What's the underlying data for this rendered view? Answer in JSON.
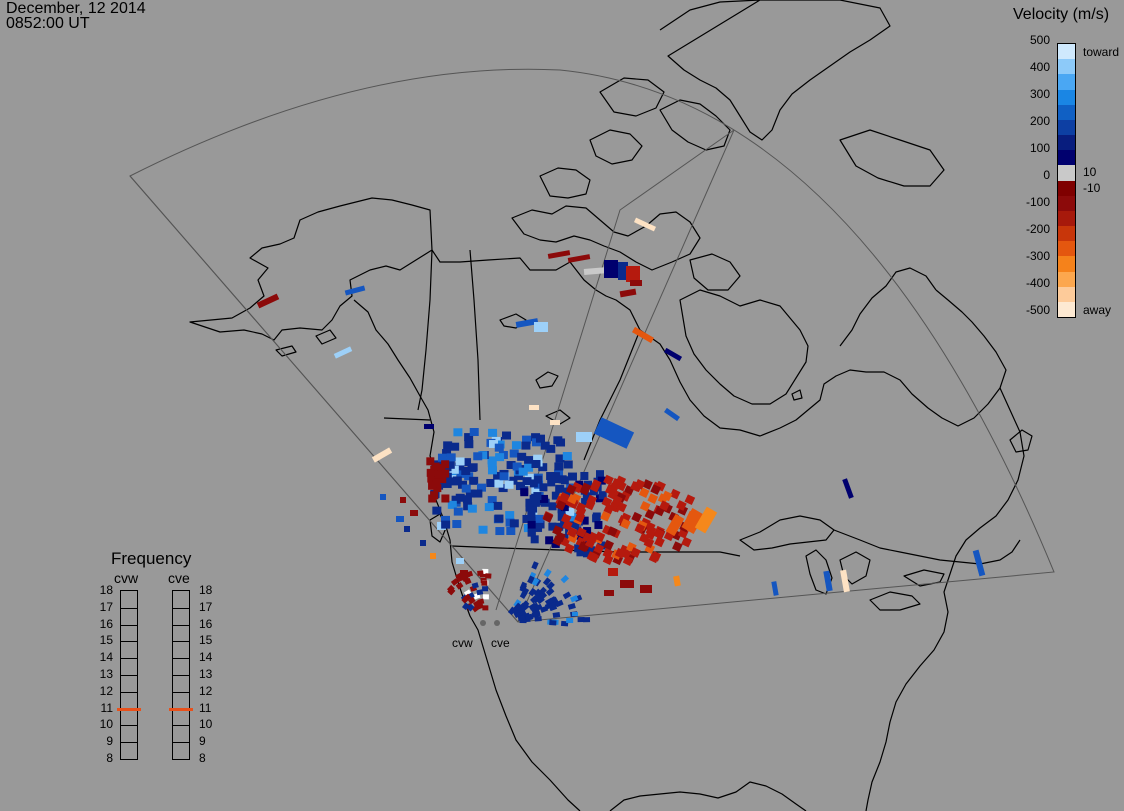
{
  "header": {
    "date": "December, 12 2014",
    "time": "0852:00 UT"
  },
  "colorbar": {
    "title": "Velocity (m/s)",
    "ticks": [
      "500",
      "400",
      "300",
      "200",
      "100",
      "0",
      "-100",
      "-200",
      "-300",
      "-400",
      "-500"
    ],
    "small_labels": [
      "10",
      "-10"
    ],
    "toward_label": "toward",
    "away_label": "away",
    "colors": [
      "#fde9d2",
      "#fdcb9a",
      "#fca74e",
      "#f5821b",
      "#e4570f",
      "#c8360a",
      "#a7190b",
      "#8c0a0a",
      "#7f0000",
      "#c9c9c9",
      "#00006e",
      "#081d7e",
      "#0d3fa3",
      "#1060c4",
      "#1a86e4",
      "#4aa7f3",
      "#8dcaf9",
      "#cfe9fd"
    ]
  },
  "radars": {
    "labels": [
      "cvw",
      "cve"
    ]
  },
  "frequency": {
    "title": "Frequency",
    "columns": [
      "cvw",
      "cve"
    ],
    "levels": [
      "18",
      "17",
      "16",
      "15",
      "14",
      "13",
      "12",
      "11",
      "10",
      "9",
      "8"
    ],
    "cvw_value": 11,
    "cve_value": 11,
    "marker_color": "#e8501a"
  },
  "colors": {
    "background": "#999999",
    "coast": "#000000",
    "fov": "#555555"
  }
}
